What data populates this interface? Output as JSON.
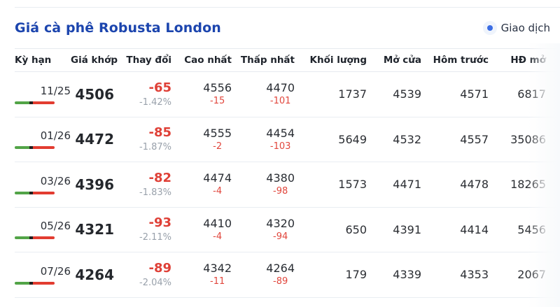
{
  "header": {
    "title": "Giá cà phê Robusta London",
    "badge": {
      "label": "Giao dịch",
      "dot_color": "#3b6de4"
    }
  },
  "table": {
    "columns": {
      "term": "Kỳ hạn",
      "price": "Giá khớp",
      "change": "Thay đổi",
      "high": "Cao nhất",
      "low": "Thấp nhất",
      "volume": "Khối lượng",
      "open": "Mở cửa",
      "prev": "Hôm trước",
      "open_interest": "HĐ mở"
    },
    "rows": [
      {
        "term": "11/25",
        "price": "4506",
        "change": "-65",
        "change_pct": "-1.42%",
        "high": "4556",
        "high_diff": "-15",
        "low": "4470",
        "low_diff": "-101",
        "volume": "1737",
        "open": "4539",
        "prev": "4571",
        "open_interest": "6817"
      },
      {
        "term": "01/26",
        "price": "4472",
        "change": "-85",
        "change_pct": "-1.87%",
        "high": "4555",
        "high_diff": "-2",
        "low": "4454",
        "low_diff": "-103",
        "volume": "5649",
        "open": "4532",
        "prev": "4557",
        "open_interest": "35086"
      },
      {
        "term": "03/26",
        "price": "4396",
        "change": "-82",
        "change_pct": "-1.83%",
        "high": "4474",
        "high_diff": "-4",
        "low": "4380",
        "low_diff": "-98",
        "volume": "1573",
        "open": "4471",
        "prev": "4478",
        "open_interest": "18265"
      },
      {
        "term": "05/26",
        "price": "4321",
        "change": "-93",
        "change_pct": "-2.11%",
        "high": "4410",
        "high_diff": "-4",
        "low": "4320",
        "low_diff": "-94",
        "volume": "650",
        "open": "4391",
        "prev": "4414",
        "open_interest": "5456"
      },
      {
        "term": "07/26",
        "price": "4264",
        "change": "-89",
        "change_pct": "-2.04%",
        "high": "4342",
        "high_diff": "-11",
        "low": "4264",
        "low_diff": "-89",
        "volume": "179",
        "open": "4339",
        "prev": "4353",
        "open_interest": "2067"
      }
    ]
  },
  "colors": {
    "title_blue": "#1c45ae",
    "negative_red": "#df4037",
    "muted_gray": "#99a1ab",
    "bar_green": "#52a447",
    "bar_red": "#e23c30",
    "badge_blue": "#3b6de4",
    "divider": "#e9edf2"
  }
}
